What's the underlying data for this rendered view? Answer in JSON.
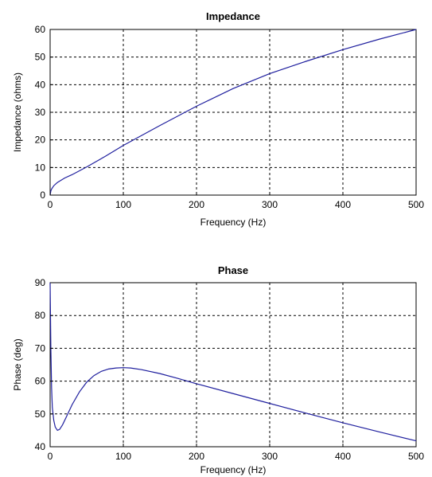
{
  "chart_data": [
    {
      "type": "line",
      "title": "Impedance",
      "xlabel": "Frequency (Hz)",
      "ylabel": "Impedance (ohms)",
      "xlim": [
        0,
        500
      ],
      "ylim": [
        0,
        60
      ],
      "xticks": [
        0,
        100,
        200,
        300,
        400,
        500
      ],
      "yticks": [
        0,
        10,
        20,
        30,
        40,
        50,
        60
      ],
      "grid": true,
      "color": "#1f1f9e",
      "series": [
        {
          "x": [
            0,
            1,
            2,
            5,
            10,
            20,
            30,
            50,
            75,
            100,
            125,
            150,
            175,
            200,
            250,
            300,
            350,
            400,
            450,
            500
          ],
          "y": [
            0,
            1.5,
            2.2,
            3.4,
            4.6,
            6.2,
            7.4,
            10.2,
            14.0,
            18.0,
            21.6,
            25.2,
            28.7,
            32.2,
            38.6,
            44.0,
            48.5,
            52.7,
            56.5,
            60.0
          ]
        }
      ]
    },
    {
      "type": "line",
      "title": "Phase",
      "xlabel": "Frequency (Hz)",
      "ylabel": "Phase (deg)",
      "xlim": [
        0,
        500
      ],
      "ylim": [
        40,
        90
      ],
      "xticks": [
        0,
        100,
        200,
        300,
        400,
        500
      ],
      "yticks": [
        40,
        50,
        60,
        70,
        80,
        90
      ],
      "grid": true,
      "color": "#1f1f9e",
      "series": [
        {
          "x": [
            0,
            0.5,
            1,
            2,
            3,
            5,
            7,
            10,
            13,
            17,
            22,
            30,
            40,
            50,
            60,
            70,
            80,
            90,
            100,
            110,
            125,
            150,
            175,
            200,
            250,
            300,
            350,
            400,
            450,
            500
          ],
          "y": [
            90,
            80,
            70,
            58,
            52,
            48,
            46,
            45,
            45.3,
            46.7,
            49.0,
            52.8,
            56.7,
            59.7,
            61.7,
            63.0,
            63.7,
            64.0,
            64.1,
            64.0,
            63.5,
            62.3,
            60.8,
            59.2,
            56.2,
            53.2,
            50.2,
            47.3,
            44.5,
            41.8
          ]
        }
      ]
    }
  ]
}
